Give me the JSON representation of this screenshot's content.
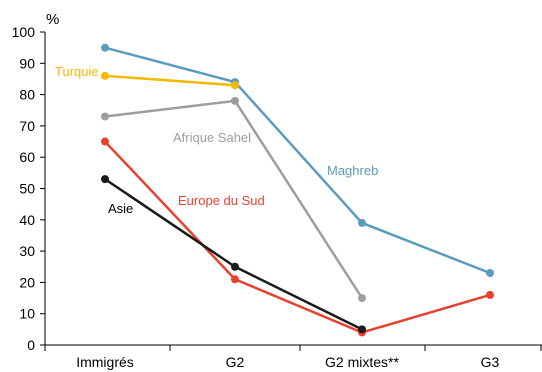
{
  "chart_data": {
    "type": "line",
    "unit_label": "%",
    "categories": [
      "Immigrés",
      "G2",
      "G2 mixtes**",
      "G3"
    ],
    "ylim": [
      0,
      100
    ],
    "yticks": [
      0,
      10,
      20,
      30,
      40,
      50,
      60,
      70,
      80,
      90,
      100
    ],
    "grid": false,
    "series": [
      {
        "name": "Maghreb",
        "color": "#5b9bbd",
        "values": [
          95,
          84,
          39,
          23
        ]
      },
      {
        "name": "Turquie",
        "color": "#f5b800",
        "values": [
          86,
          83,
          null,
          null
        ]
      },
      {
        "name": "Afrique Sahel",
        "color": "#9e9e9e",
        "values": [
          73,
          78,
          15,
          null
        ]
      },
      {
        "name": "Europe du Sud",
        "color": "#e8412e",
        "values": [
          65,
          21,
          4,
          16
        ]
      },
      {
        "name": "Asie",
        "color": "#1a1a1a",
        "values": [
          53,
          25,
          5,
          null
        ]
      }
    ]
  }
}
